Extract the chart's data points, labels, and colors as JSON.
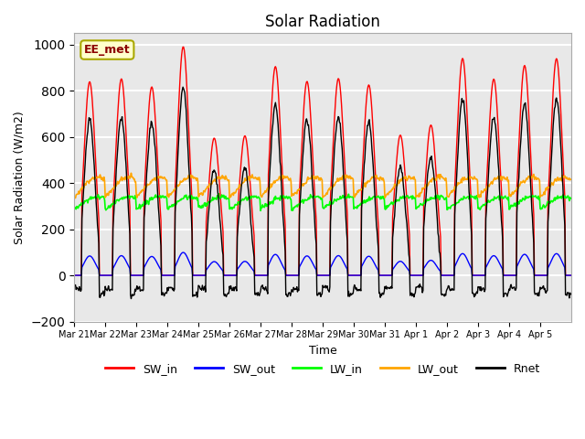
{
  "title": "Solar Radiation",
  "ylabel": "Solar Radiation (W/m2)",
  "xlabel": "Time",
  "ylim": [
    -200,
    1050
  ],
  "yticks": [
    -200,
    0,
    200,
    400,
    600,
    800,
    1000
  ],
  "n_days": 16,
  "label_text": "EE_met",
  "colors": {
    "SW_in": "#ff0000",
    "SW_out": "#0000ff",
    "LW_in": "#00ff00",
    "LW_out": "#ffa500",
    "Rnet": "#000000"
  },
  "legend_labels": [
    "SW_in",
    "SW_out",
    "LW_in",
    "LW_out",
    "Rnet"
  ],
  "date_labels": [
    "Mar 21",
    "Mar 22",
    "Mar 23",
    "Mar 24",
    "Mar 25",
    "Mar 26",
    "Mar 27",
    "Mar 28",
    "Mar 29",
    "Mar 30",
    "Mar 31",
    "Apr 1",
    "Apr 2",
    "Apr 3",
    "Apr 4",
    "Apr 5"
  ],
  "background_color": "#e8e8e8",
  "grid_color": "#ffffff",
  "fig_color": "#ffffff",
  "sw_in_daily_peaks": [
    830,
    840,
    820,
    960,
    600,
    610,
    900,
    870,
    870,
    840,
    590,
    650,
    950,
    870,
    920,
    950
  ],
  "LW_in_base": 310,
  "LW_out_base": 375
}
